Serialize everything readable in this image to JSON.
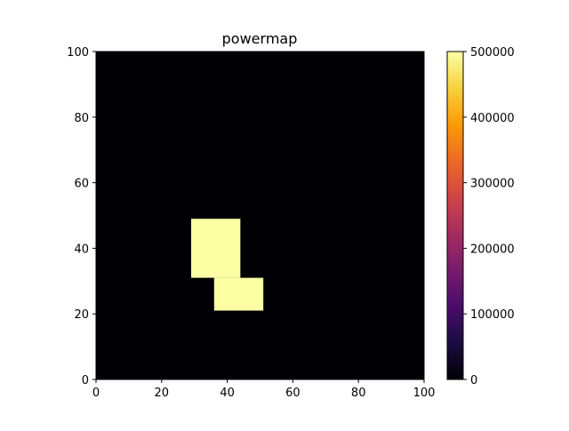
{
  "chart_data": {
    "type": "heatmap",
    "title": "powermap",
    "xlabel": "",
    "ylabel": "",
    "xlim": [
      0,
      100
    ],
    "ylim": [
      0,
      100
    ],
    "x_ticks": [
      "0",
      "20",
      "40",
      "60",
      "80",
      "100"
    ],
    "y_ticks": [
      "0",
      "20",
      "40",
      "60",
      "80",
      "100"
    ],
    "grid": false,
    "background_value": 0,
    "regions": [
      {
        "x_range": [
          29,
          44
        ],
        "y_range": [
          31,
          49
        ],
        "value": 500000
      },
      {
        "x_range": [
          36,
          51
        ],
        "y_range": [
          21,
          31
        ],
        "value": 500000
      }
    ],
    "colorbar": {
      "colormap": "inferno",
      "range": [
        0,
        500000
      ],
      "ticks": [
        "0",
        "100000",
        "200000",
        "300000",
        "400000",
        "500000"
      ],
      "stops": [
        "#000004",
        "#1b0c41",
        "#4a0c6b",
        "#781c6d",
        "#a52c60",
        "#cf4446",
        "#ed6925",
        "#fb9b06",
        "#f7d13d",
        "#fcffa4"
      ]
    }
  }
}
